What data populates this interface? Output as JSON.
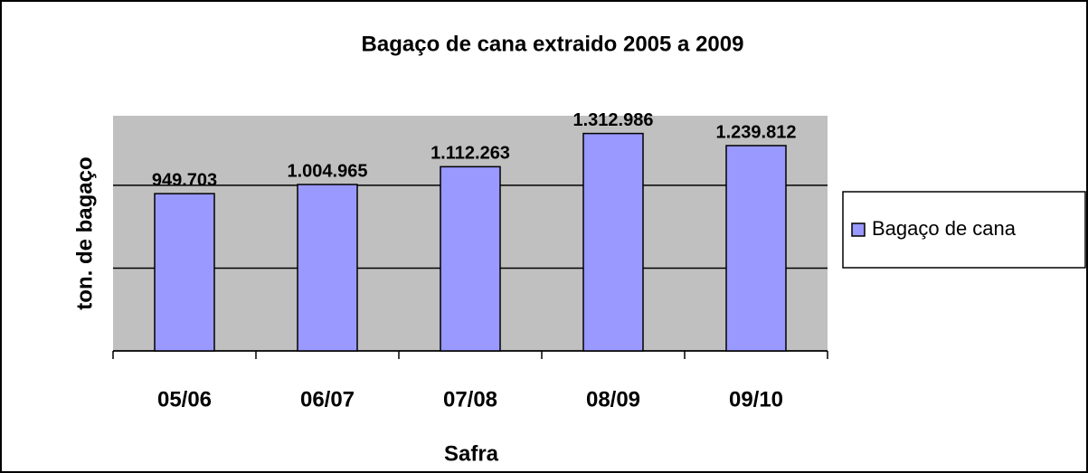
{
  "chart_data": {
    "type": "bar",
    "title": "Bagaço de cana extraido 2005 a 2009",
    "x_label": "Safra",
    "y_label": "ton. de bagaço",
    "categories": [
      "05/06",
      "06/07",
      "07/08",
      "08/09",
      "09/10"
    ],
    "series": [
      {
        "name": "Bagaço de cana",
        "color": "#9999ff",
        "values": [
          949703,
          1004965,
          1112263,
          1312986,
          1239812
        ],
        "value_labels": [
          "949.703",
          "1.004.965",
          "1.112.263",
          "1.312.986",
          "1.239.812"
        ]
      }
    ],
    "ylim": [
      0,
      1420000
    ],
    "yticks": [
      0,
      500000,
      1000000
    ],
    "grid": true,
    "legend": "right"
  }
}
